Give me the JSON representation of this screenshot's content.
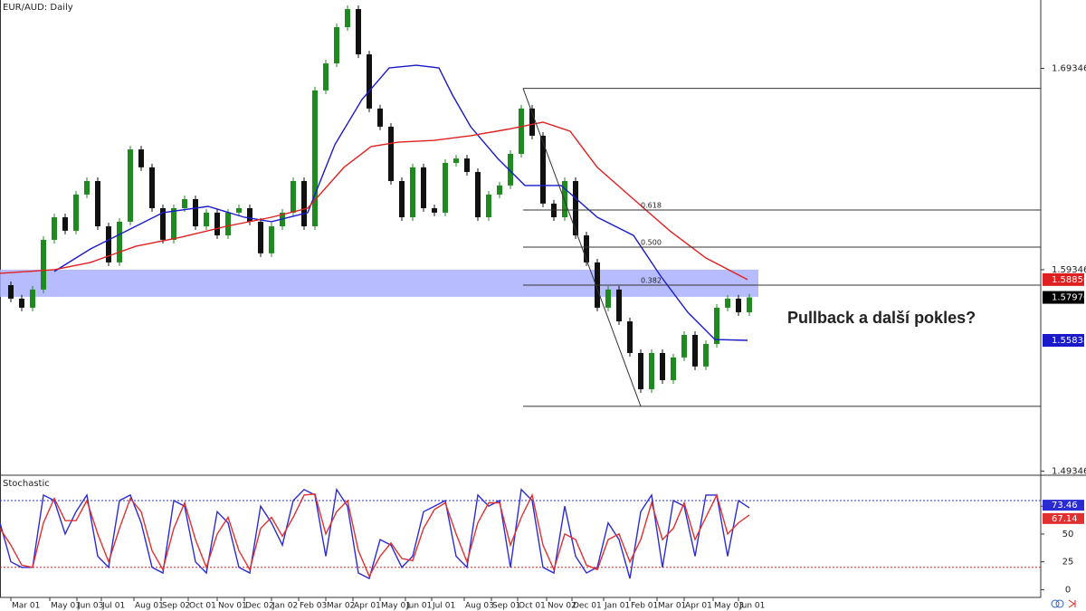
{
  "chart_data": [
    {
      "type": "candlestick",
      "title": "EUR/AUD: Daily",
      "annotation": "Pullback a další pokles?",
      "xlim": [
        0,
        287.5
      ],
      "ylim": [
        1.4914,
        1.7274
      ],
      "yticks": [
        1.49346,
        1.59346,
        1.69346
      ],
      "x": [
        0,
        3,
        6,
        9,
        12,
        15,
        18,
        21,
        24,
        27,
        30,
        33,
        36,
        39,
        42,
        45,
        48,
        51,
        54,
        57,
        60,
        63,
        66,
        69,
        72,
        75,
        78,
        81,
        84,
        87,
        90,
        93,
        96,
        99,
        102,
        105,
        108,
        111,
        114,
        117,
        120,
        123,
        126,
        129,
        132,
        135,
        138,
        141,
        144,
        147,
        150,
        153,
        156,
        159,
        162,
        165,
        168,
        171,
        174,
        177,
        180,
        183,
        186,
        189,
        192,
        195,
        198,
        201,
        204,
        207
      ],
      "close": [
        1.5858,
        1.5791,
        1.5746,
        1.5836,
        1.6083,
        1.6195,
        1.6128,
        1.6308,
        1.6375,
        1.615,
        1.5971,
        1.6173,
        1.6532,
        1.6443,
        1.624,
        1.6083,
        1.624,
        1.6285,
        1.615,
        1.6218,
        1.6105,
        1.6218,
        1.624,
        1.6173,
        1.6016,
        1.615,
        1.6218,
        1.6375,
        1.615,
        1.6825,
        1.6959,
        1.7139,
        1.7229,
        1.7004,
        1.6735,
        1.6645,
        1.6375,
        1.6195,
        1.6443,
        1.624,
        1.6218,
        1.6465,
        1.6487,
        1.642,
        1.6195,
        1.6308,
        1.6353,
        1.651,
        1.6735,
        1.66,
        1.6263,
        1.6195,
        1.6375,
        1.6105,
        1.5971,
        1.5746,
        1.5836,
        1.5678,
        1.5521,
        1.5341,
        1.5521,
        1.5386,
        1.5499,
        1.5611,
        1.5454,
        1.5566,
        1.5746,
        1.5791,
        1.5723,
        1.5797
      ],
      "up_color": "#1f8a1f",
      "down_color": "#111111",
      "series": [
        {
          "color": "#1a1acc",
          "x": [
            15,
            25,
            37.5,
            45,
            57.5,
            67.5,
            75,
            85,
            92.5,
            100,
            107.5,
            115,
            121.25,
            125,
            130,
            137.5,
            145,
            155,
            165,
            175,
            182.5,
            190,
            197.5,
            206.5
          ],
          "values": [
            1.5926,
            1.6038,
            1.615,
            1.6218,
            1.6249,
            1.6195,
            1.6173,
            1.6218,
            1.6555,
            1.678,
            1.6937,
            1.695,
            1.6937,
            1.6802,
            1.6645,
            1.6487,
            1.6353,
            1.6353,
            1.6195,
            1.6105,
            1.5903,
            1.5723,
            1.5588,
            1.55838
          ]
        },
        {
          "color": "#e02020",
          "x": [
            0,
            15,
            25,
            37.5,
            50,
            62.5,
            75,
            85,
            95,
            102.5,
            110,
            120,
            130,
            140,
            150,
            157.5,
            165,
            175,
            185,
            195,
            206.5
          ],
          "values": [
            1.5917,
            1.5935,
            1.5971,
            1.6051,
            1.6096,
            1.615,
            1.6195,
            1.624,
            1.6443,
            1.6546,
            1.6568,
            1.6577,
            1.66,
            1.6631,
            1.6667,
            1.6622,
            1.6443,
            1.6285,
            1.6128,
            1.5993,
            1.58856
          ]
        }
      ],
      "zone": {
        "from": 1.58,
        "to": 1.5935,
        "x_end": 209.5,
        "color": "#aab0ff"
      },
      "fib": {
        "x_start": 144.5,
        "swing_x": [
          144.5,
          177
        ],
        "levels": [
          {
            "price": 1.6835
          },
          {
            "price": 1.6231,
            "label": "0.618"
          },
          {
            "price": 1.6047,
            "label": "0.500"
          },
          {
            "price": 1.5858,
            "label": "0.382"
          },
          {
            "price": 1.5256
          }
        ]
      },
      "price_markers": [
        {
          "value": 1.58856,
          "color": "#e02020"
        },
        {
          "value": 1.5797,
          "label": "1.57970",
          "color": "#000000"
        },
        {
          "value": 1.55838,
          "color": "#1a1acc"
        }
      ]
    },
    {
      "type": "line",
      "title": "Stochastic",
      "xlim": [
        0,
        287.5
      ],
      "ylim": [
        -7,
        102
      ],
      "yticks": [
        0,
        25,
        50,
        75
      ],
      "levels": [
        80,
        20
      ],
      "xticks": [
        {
          "value": 3,
          "label": "Mar 01"
        },
        {
          "value": 13.75,
          "label": "May 01"
        },
        {
          "value": 21.25,
          "label": "Jun 03"
        },
        {
          "value": 28,
          "label": "Jul 01"
        },
        {
          "value": 37,
          "label": "Aug 01"
        },
        {
          "value": 44.5,
          "label": "Sep 02"
        },
        {
          "value": 52,
          "label": "Oct 01"
        },
        {
          "value": 60,
          "label": "Nov 01"
        },
        {
          "value": 67.5,
          "label": "Dec 02"
        },
        {
          "value": 75,
          "label": "Jan 02"
        },
        {
          "value": 82.5,
          "label": "Feb 03"
        },
        {
          "value": 90,
          "label": "Mar 02"
        },
        {
          "value": 97.5,
          "label": "Apr 01"
        },
        {
          "value": 105,
          "label": "May 01"
        },
        {
          "value": 112,
          "label": "Jun 01"
        },
        {
          "value": 119.25,
          "label": "Jul 01"
        },
        {
          "value": 128.25,
          "label": "Aug 03"
        },
        {
          "value": 135.75,
          "label": "Sep 01"
        },
        {
          "value": 143,
          "label": "Oct 01"
        },
        {
          "value": 151,
          "label": "Nov 02"
        },
        {
          "value": 158,
          "label": "Dec 01"
        },
        {
          "value": 166.75,
          "label": "Jan 01"
        },
        {
          "value": 174,
          "label": "Feb 01"
        },
        {
          "value": 181.5,
          "label": "Mar 01"
        },
        {
          "value": 189,
          "label": "Apr 01"
        },
        {
          "value": 197,
          "label": "May 03"
        },
        {
          "value": 204,
          "label": "Jun 01"
        }
      ],
      "x": [
        0,
        3,
        6,
        9,
        12,
        15,
        18,
        21,
        24,
        27,
        30,
        33,
        36,
        39,
        42,
        45,
        48,
        51,
        54,
        57,
        60,
        63,
        66,
        69,
        72,
        75,
        78,
        81,
        84,
        87,
        90,
        93,
        96,
        99,
        102,
        105,
        108,
        111,
        114,
        117,
        120,
        123,
        126,
        129,
        132,
        135,
        138,
        141,
        144,
        147,
        150,
        153,
        156,
        159,
        162,
        165,
        168,
        171,
        174,
        177,
        180,
        183,
        186,
        189,
        192,
        195,
        198,
        201,
        204,
        207
      ],
      "series": [
        {
          "color": "#2b2bd4",
          "values": [
            60,
            25,
            20,
            20,
            85,
            80,
            50,
            70,
            85,
            30,
            20,
            80,
            85,
            60,
            20,
            15,
            80,
            75,
            25,
            15,
            70,
            60,
            20,
            15,
            75,
            60,
            40,
            80,
            90,
            85,
            30,
            90,
            75,
            15,
            10,
            45,
            40,
            20,
            30,
            70,
            75,
            80,
            30,
            20,
            85,
            75,
            80,
            20,
            90,
            80,
            20,
            15,
            75,
            30,
            15,
            20,
            60,
            45,
            10,
            70,
            85,
            20,
            80,
            75,
            30,
            85,
            85,
            30,
            80,
            73.46
          ]
        },
        {
          "color": "#e03030",
          "values": [
            55,
            40,
            22,
            20,
            60,
            82,
            62,
            62,
            80,
            50,
            25,
            55,
            82,
            70,
            35,
            18,
            55,
            78,
            45,
            20,
            50,
            65,
            35,
            18,
            55,
            65,
            48,
            65,
            85,
            86,
            50,
            70,
            80,
            35,
            12,
            30,
            42,
            28,
            26,
            55,
            72,
            78,
            50,
            25,
            60,
            78,
            78,
            40,
            65,
            85,
            40,
            18,
            50,
            45,
            22,
            18,
            45,
            50,
            25,
            45,
            78,
            45,
            55,
            78,
            45,
            65,
            85,
            50,
            60,
            67.14
          ]
        }
      ]
    }
  ]
}
